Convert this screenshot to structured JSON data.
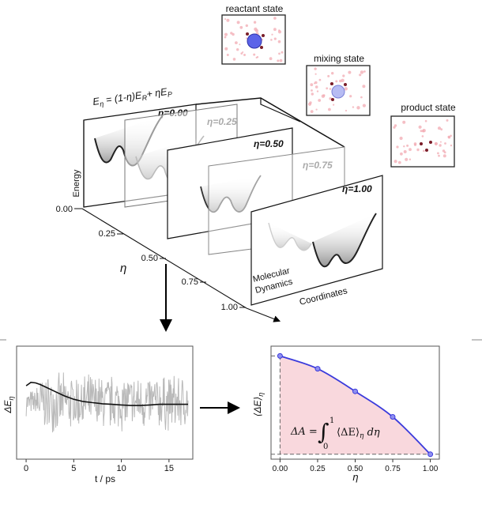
{
  "state_boxes": {
    "reactant": "reactant state",
    "mixing": "mixing state",
    "product": "product state"
  },
  "panel3d": {
    "equation": {
      "lhs_E": "E",
      "lhs_sub": "η",
      "mid": " = (1-η)E",
      "sub_R": "R",
      "plus": "+ ηE",
      "sub_P": "P"
    },
    "eta_labels": [
      "η=0.00",
      "η=0.25",
      "η=0.50",
      "η=0.75",
      "η=1.00"
    ],
    "energy_label": "Energy",
    "eta_axis_label": "η",
    "eta_ticks": [
      "0.00",
      "0.25",
      "0.50",
      "0.75",
      "1.00"
    ],
    "coords_label": "Coordinates",
    "md_label_line1": "Molecular",
    "md_label_line2": "Dynamics"
  },
  "chart_data": [
    {
      "type": "line",
      "ylabel_main": "ΔE",
      "ylabel_sub": "η",
      "xlabel": "t / ps",
      "x_ticks": [
        0,
        5,
        10,
        15
      ],
      "xlim": [
        -1,
        17.5
      ],
      "ylim": [
        -1,
        1
      ],
      "series": [
        {
          "x": [
            0,
            0.5,
            1,
            1.5,
            2,
            3,
            4,
            5,
            6,
            7,
            8,
            9,
            10,
            11,
            12,
            13,
            14,
            15,
            16,
            17
          ],
          "y": [
            0.3,
            0.36,
            0.35,
            0.32,
            0.28,
            0.2,
            0.12,
            0.06,
            0.02,
            0.0,
            -0.02,
            -0.03,
            -0.04,
            -0.05,
            -0.05,
            -0.04,
            -0.03,
            -0.03,
            -0.03,
            -0.03
          ]
        }
      ]
    },
    {
      "type": "line",
      "ylabel_main": "⟨ΔE⟩",
      "ylabel_sub": "η",
      "xlabel": "η",
      "x_ticks": [
        "0.00",
        "0.25",
        "0.50",
        "0.75",
        "1.00"
      ],
      "xlim": [
        -0.06,
        1.06
      ],
      "ylim": [
        -0.05,
        1.1
      ],
      "series": [
        {
          "x": [
            0.0,
            0.25,
            0.5,
            0.75,
            1.0
          ],
          "y": [
            1.0,
            0.87,
            0.64,
            0.38,
            0.0
          ],
          "color": "#3b3bdc"
        }
      ],
      "fill_color": "#f9d8dd",
      "formula": {
        "lhs": "ΔA = ",
        "upper": "1",
        "lower": "0",
        "integrand": "⟨ΔE⟩",
        "sub": "η",
        "tail": " dη"
      }
    }
  ],
  "colors": {
    "accent_blue": "#3b3bdc",
    "fill_pink": "#f9d8dd",
    "noise_gray": "#b9b9b9",
    "particle_pink": "#f2a9b2",
    "molecule_dark": "#7a1d28"
  }
}
